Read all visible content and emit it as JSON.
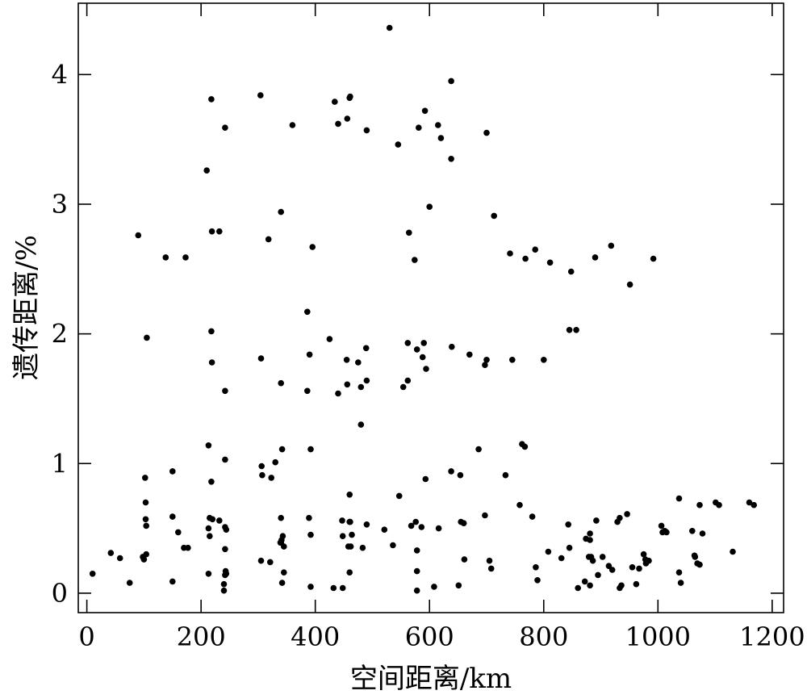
{
  "chart_data": {
    "type": "scatter",
    "title": "",
    "xlabel": "空间距离/km",
    "ylabel": "遗传距离/%",
    "xlim": [
      -15,
      1220
    ],
    "ylim": [
      -0.15,
      4.55
    ],
    "xticks": [
      0,
      200,
      400,
      600,
      800,
      1000,
      1200
    ],
    "yticks": [
      0,
      1,
      2,
      3,
      4
    ],
    "grid": false,
    "legend": "none",
    "marker_color": "#000000",
    "series": [
      {
        "x": [
          530,
          638,
          218,
          304,
          242,
          360,
          434,
          440,
          456,
          461,
          460,
          490,
          581,
          592,
          615,
          620,
          545,
          700,
          638,
          210,
          340,
          600,
          713,
          90,
          219,
          232,
          318,
          395,
          564,
          574,
          138,
          173,
          741,
          768,
          785,
          811,
          848,
          890,
          918,
          992,
          951,
          386,
          105,
          425,
          218,
          845,
          857,
          562,
          590,
          578,
          588,
          594,
          305,
          390,
          455,
          475,
          489,
          639,
          670,
          697,
          700,
          745,
          800,
          219,
          340,
          386,
          440,
          456,
          480,
          490,
          554,
          562,
          242,
          480,
          213,
          342,
          392,
          306,
          330,
          686,
          762,
          767,
          242,
          218,
          307,
          323,
          638,
          654,
          733,
          102,
          150,
          593,
          460,
          547,
          1037,
          1101,
          1107,
          1073,
          1160,
          1168,
          758,
          1006,
          1012,
          946,
          933,
          929,
          892,
          103,
          215,
          220,
          232,
          340,
          389,
          447,
          461,
          697,
          780,
          843,
          1015,
          103,
          104,
          150,
          160,
          170,
          177,
          213,
          215,
          242,
          244,
          339,
          341,
          392,
          448,
          464,
          460,
          490,
          521,
          576,
          586,
          616,
          655,
          660,
          845,
          874,
          881,
          881,
          1008,
          1060,
          1078,
          1131,
          42,
          58,
          98,
          100,
          104,
          242,
          305,
          321,
          340,
          340,
          343,
          458,
          483,
          536,
          568,
          578,
          661,
          705,
          708,
          786,
          789,
          808,
          831,
          879,
          883,
          975,
          984,
          1065,
          1064,
          1069,
          1073,
          886,
          10,
          75,
          150,
          213,
          240,
          243,
          244,
          345,
          342,
          392,
          432,
          448,
          460,
          578,
          608,
          651,
          860,
          872,
          881,
          895,
          903,
          914,
          920,
          955,
          962,
          967,
          978,
          979,
          1037,
          1040,
          240,
          242,
          578,
          933,
          936,
          345,
          462
        ],
        "y": [
          4.36,
          3.95,
          3.81,
          3.84,
          3.59,
          3.61,
          3.79,
          3.62,
          3.66,
          3.83,
          3.82,
          3.57,
          3.59,
          3.72,
          3.61,
          3.51,
          3.46,
          3.55,
          3.35,
          3.26,
          2.94,
          2.98,
          2.91,
          2.76,
          2.79,
          2.79,
          2.73,
          2.67,
          2.78,
          2.57,
          2.59,
          2.59,
          2.62,
          2.58,
          2.65,
          2.55,
          2.48,
          2.59,
          2.68,
          2.58,
          2.38,
          2.17,
          1.97,
          1.96,
          2.02,
          2.03,
          2.03,
          1.93,
          1.93,
          1.88,
          1.82,
          1.73,
          1.81,
          1.84,
          1.8,
          1.78,
          1.89,
          1.9,
          1.84,
          1.76,
          1.8,
          1.8,
          1.8,
          1.78,
          1.62,
          1.56,
          1.54,
          1.61,
          1.59,
          1.64,
          1.59,
          1.64,
          1.56,
          1.3,
          1.14,
          1.11,
          1.11,
          0.98,
          1.01,
          1.11,
          1.15,
          1.13,
          1.03,
          0.86,
          0.91,
          0.89,
          0.94,
          0.91,
          0.91,
          0.89,
          0.94,
          0.88,
          0.76,
          0.75,
          0.73,
          0.7,
          0.68,
          0.68,
          0.7,
          0.68,
          0.68,
          0.52,
          0.48,
          0.61,
          0.58,
          0.55,
          0.56,
          0.7,
          0.58,
          0.57,
          0.56,
          0.58,
          0.58,
          0.56,
          0.55,
          0.6,
          0.59,
          0.53,
          0.47,
          0.57,
          0.52,
          0.59,
          0.47,
          0.35,
          0.35,
          0.5,
          0.44,
          0.51,
          0.49,
          0.39,
          0.41,
          0.45,
          0.44,
          0.45,
          0.55,
          0.53,
          0.49,
          0.55,
          0.51,
          0.5,
          0.55,
          0.54,
          0.35,
          0.42,
          0.41,
          0.46,
          0.47,
          0.48,
          0.46,
          0.32,
          0.31,
          0.27,
          0.28,
          0.26,
          0.3,
          0.34,
          0.25,
          0.24,
          0.39,
          0.39,
          0.44,
          0.36,
          0.35,
          0.37,
          0.52,
          0.33,
          0.26,
          0.25,
          0.19,
          0.2,
          0.1,
          0.32,
          0.27,
          0.28,
          0.28,
          0.3,
          0.25,
          0.28,
          0.29,
          0.23,
          0.22,
          0.25,
          0.15,
          0.08,
          0.09,
          0.15,
          0.07,
          0.17,
          0.15,
          0.16,
          0.08,
          0.05,
          0.04,
          0.04,
          0.16,
          0.17,
          0.05,
          0.06,
          0.04,
          0.09,
          0.06,
          0.14,
          0.28,
          0.21,
          0.18,
          0.2,
          0.07,
          0.19,
          0.26,
          0.23,
          0.16,
          0.08,
          0.02,
          0.14,
          0.02,
          0.04,
          0.06,
          0.36,
          0.36
        ]
      }
    ]
  }
}
